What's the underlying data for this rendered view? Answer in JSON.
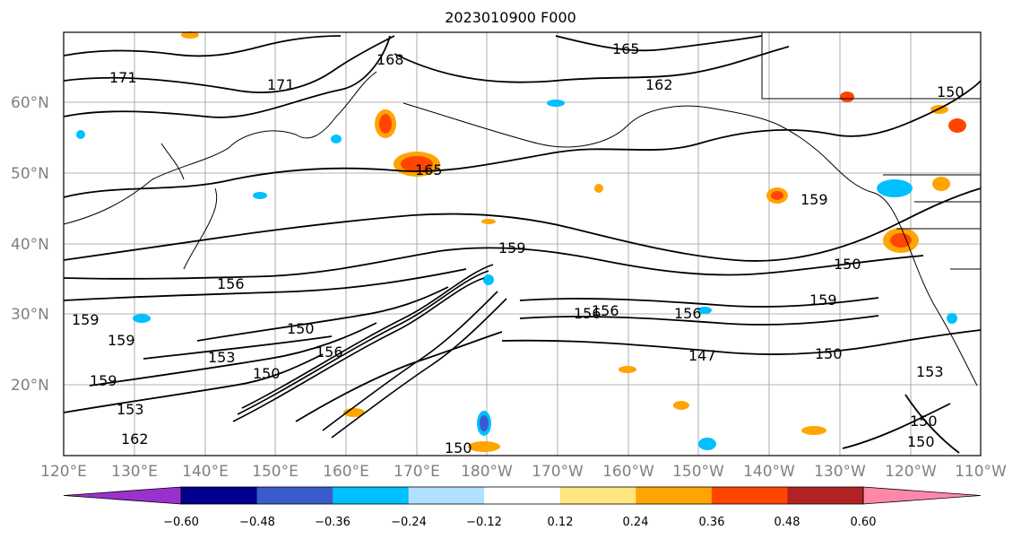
{
  "title": "2023010900 F000",
  "lat_labels": [
    "60°N",
    "50°N",
    "40°N",
    "30°N",
    "20°N"
  ],
  "lon_labels": [
    "120°E",
    "130°E",
    "140°E",
    "150°E",
    "160°E",
    "170°E",
    "180°W",
    "170°W",
    "160°W",
    "150°W",
    "140°W",
    "130°W",
    "120°W",
    "110°W"
  ],
  "contour_labels": [
    "171",
    "171",
    "168",
    "165",
    "162",
    "165",
    "159",
    "159",
    "156",
    "159",
    "150",
    "156",
    "153",
    "150",
    "147",
    "150",
    "153",
    "156",
    "159",
    "156",
    "150",
    "159",
    "150",
    "153",
    "156",
    "159",
    "162",
    "150",
    "150",
    "150"
  ],
  "colorbar": {
    "ticks": [
      "−0.60",
      "−0.48",
      "−0.36",
      "−0.24",
      "−0.12",
      "0.12",
      "0.24",
      "0.36",
      "0.48",
      "0.60"
    ],
    "colors": [
      "#9932cc",
      "#00008b",
      "#3a5bcc",
      "#00bfff",
      "#b0e2ff",
      "#ffffff",
      "#ffe680",
      "#ffa500",
      "#ff4500",
      "#b22222",
      "#ff88aa"
    ]
  },
  "colors": {
    "axis_text": "#808080",
    "grid": "#808080",
    "contour": "#000000",
    "coast": "#000000"
  }
}
